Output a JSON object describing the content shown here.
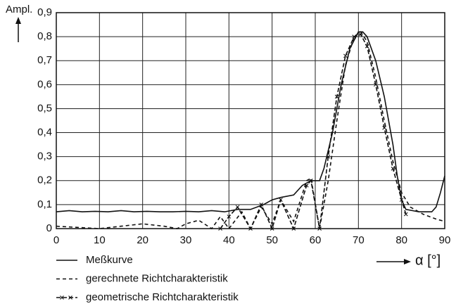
{
  "chart_data": {
    "type": "line",
    "y_label": "Ampl.",
    "x_label": "α [°]",
    "xlim": [
      0,
      90
    ],
    "ylim": [
      0,
      0.9
    ],
    "xticks": [
      0,
      10,
      20,
      30,
      40,
      50,
      60,
      70,
      80,
      90
    ],
    "yticks": [
      0,
      {
        "value": 0.1,
        "label": "0,1"
      },
      {
        "value": 0.2,
        "label": "0,2"
      },
      {
        "value": 0.3,
        "label": "0,3"
      },
      {
        "value": 0.4,
        "label": "0,4"
      },
      {
        "value": 0.5,
        "label": "0,5"
      },
      {
        "value": 0.6,
        "label": "0,6"
      },
      {
        "value": 0.7,
        "label": "0,7"
      },
      {
        "value": 0.8,
        "label": "0,8"
      },
      {
        "value": 0.9,
        "label": "0,9"
      }
    ],
    "grid": true,
    "series": [
      {
        "name": "Meßkurve",
        "color": "#111",
        "style": "solid",
        "x": [
          0,
          3,
          6,
          9,
          12,
          15,
          18,
          21,
          24,
          27,
          30,
          33,
          36,
          39,
          42,
          45,
          48,
          50,
          52,
          55,
          57,
          59,
          61,
          62,
          64,
          66,
          68,
          70,
          71,
          72,
          74,
          76,
          78,
          79,
          80,
          81,
          84,
          87,
          88,
          89,
          90
        ],
        "values": [
          0.07,
          0.075,
          0.07,
          0.072,
          0.07,
          0.075,
          0.07,
          0.072,
          0.07,
          0.07,
          0.072,
          0.07,
          0.075,
          0.07,
          0.08,
          0.08,
          0.1,
          0.12,
          0.13,
          0.14,
          0.18,
          0.2,
          0.2,
          0.25,
          0.4,
          0.6,
          0.75,
          0.82,
          0.82,
          0.8,
          0.7,
          0.55,
          0.35,
          0.22,
          0.12,
          0.08,
          0.07,
          0.07,
          0.09,
          0.15,
          0.22
        ]
      },
      {
        "name": "gerechnete Richtcharakteristik",
        "color": "#111",
        "style": "dashed",
        "x": [
          0,
          5,
          10,
          15,
          20,
          25,
          28,
          30,
          33,
          36,
          38,
          40,
          43,
          45,
          47.5,
          50,
          52,
          55,
          58,
          59,
          61,
          63,
          65,
          67,
          69,
          70.5,
          72,
          74,
          76,
          78,
          80,
          82,
          85,
          88,
          90
        ],
        "values": [
          0.01,
          0.005,
          0.0,
          0.01,
          0.02,
          0.01,
          0.0,
          0.02,
          0.035,
          0.0,
          0.05,
          0.0,
          0.07,
          0.0,
          0.09,
          0.02,
          0.12,
          0.03,
          0.2,
          0.21,
          0.0,
          0.2,
          0.45,
          0.68,
          0.8,
          0.82,
          0.78,
          0.63,
          0.45,
          0.28,
          0.15,
          0.09,
          0.06,
          0.04,
          0.03
        ]
      },
      {
        "name": "geometrische Richtcharakteristik",
        "color": "#111",
        "style": "dashcross",
        "x": [
          38,
          40,
          42,
          45,
          47.5,
          50,
          52,
          55,
          58,
          59,
          61,
          63,
          65,
          67,
          69,
          70.5,
          72,
          74,
          76,
          78,
          80,
          81
        ],
        "values": [
          0.0,
          0.05,
          0.09,
          0.0,
          0.1,
          0.0,
          0.12,
          0.0,
          0.18,
          0.2,
          0.0,
          0.3,
          0.55,
          0.72,
          0.8,
          0.81,
          0.76,
          0.6,
          0.42,
          0.25,
          0.12,
          0.06
        ]
      }
    ]
  }
}
